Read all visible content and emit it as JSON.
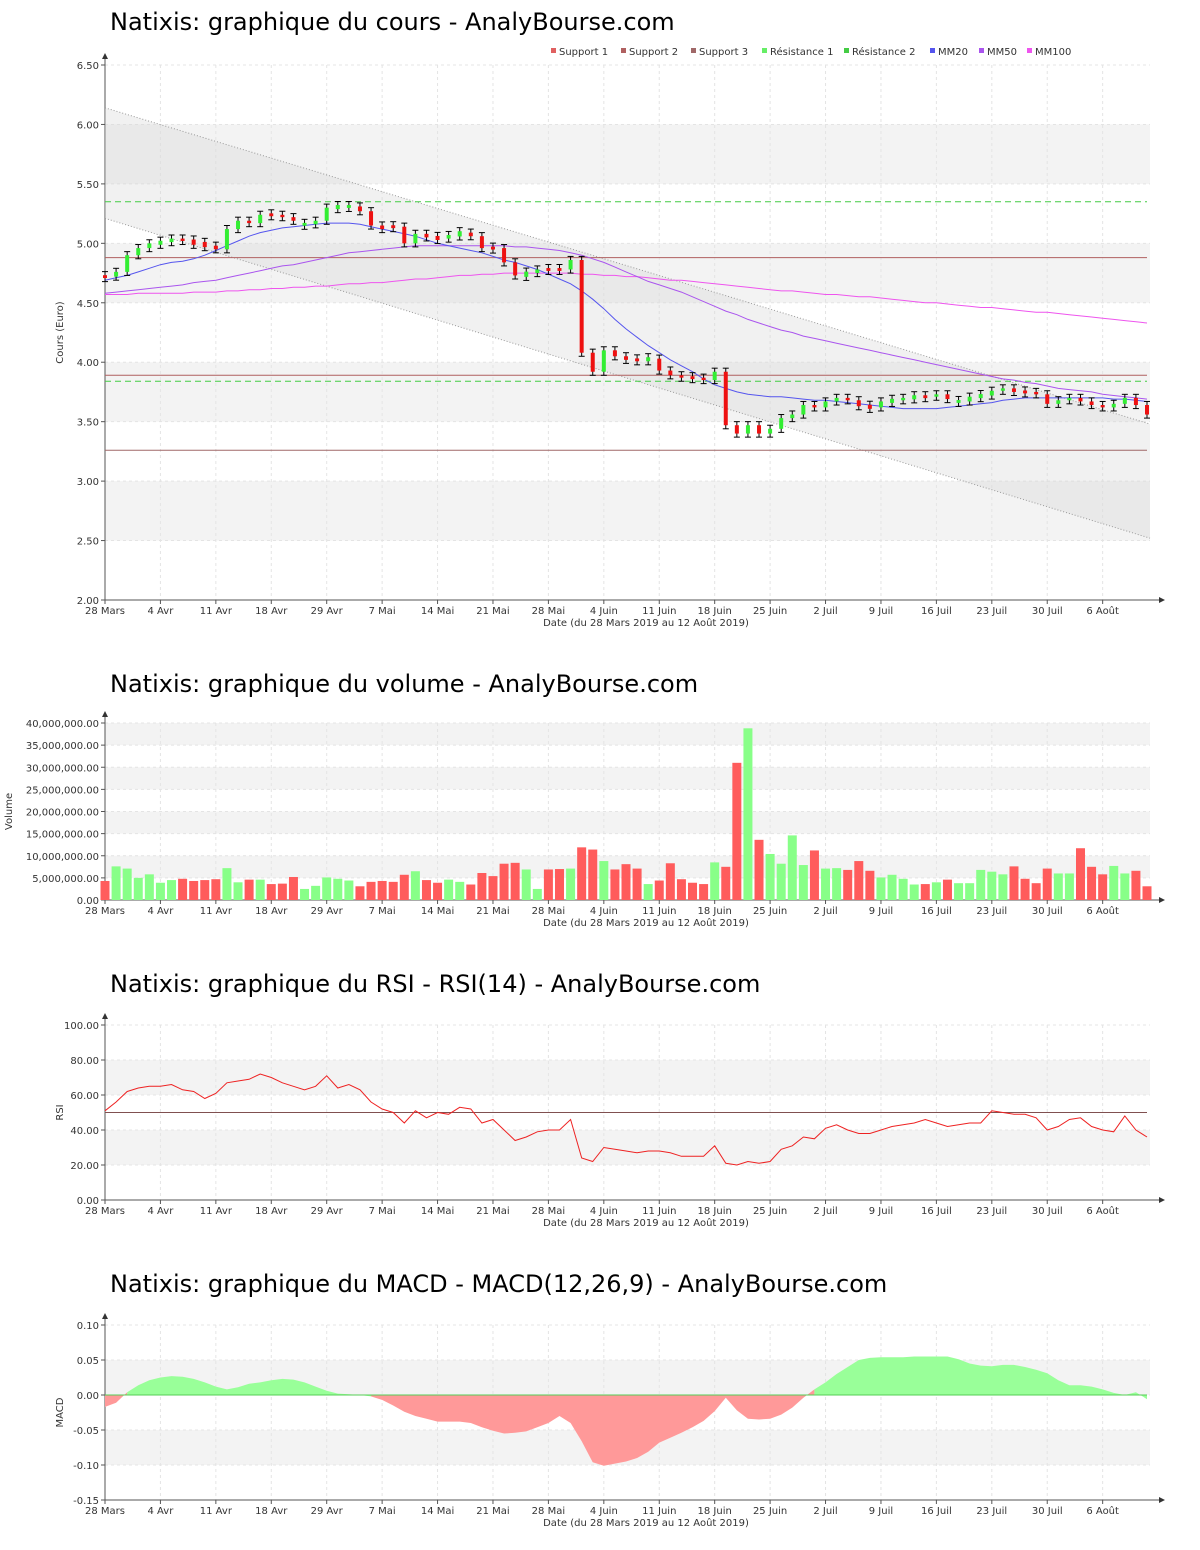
{
  "colors": {
    "support": "#d85c5c",
    "support1_box": "#e06060",
    "support2_box": "#b06060",
    "support3_box": "#a06868",
    "resistance": "#44cc44",
    "resistance_box": "#66ee66",
    "mm20": "#5555ee",
    "mm50": "#aa55ee",
    "mm100": "#ee55ee",
    "candle_up": "#33ee33",
    "candle_down": "#ee1111",
    "vol_up": "#88ff88",
    "vol_down": "#ff5c5c",
    "rsi_line": "#ee2222",
    "macd_pos": "#99ff99",
    "macd_neg": "#ff9999"
  },
  "date_ticks": [
    "28 Mars",
    "4 Avr",
    "11 Avr",
    "18 Avr",
    "29 Avr",
    "7 Mai",
    "14 Mai",
    "21 Mai",
    "28 Mai",
    "4 Juin",
    "11 Juin",
    "18 Juin",
    "25 Juin",
    "2 Juil",
    "9 Juil",
    "16 Juil",
    "23 Juil",
    "30 Juil",
    "6 Août"
  ],
  "date_label": "Date (du 28 Mars 2019 au 12 Août 2019)",
  "panels": {
    "price": {
      "title": "Natixis: graphique du cours - AnalyBourse.com",
      "ylabel": "Cours (Euro)"
    },
    "volume": {
      "title": "Natixis: graphique du volume - AnalyBourse.com",
      "ylabel": "Volume"
    },
    "rsi": {
      "title": "Natixis: graphique du RSI - RSI(14) - AnalyBourse.com",
      "ylabel": "RSI"
    },
    "macd": {
      "title": "Natixis: graphique du MACD - MACD(12,26,9) - AnalyBourse.com",
      "ylabel": "MACD"
    }
  },
  "chart_data": [
    {
      "type": "line",
      "ylabel": "Cours (Euro)",
      "ylim": [
        2.0,
        6.5
      ],
      "yticks": [
        "2.00",
        "2.50",
        "3.00",
        "3.50",
        "4.00",
        "4.50",
        "5.00",
        "5.50",
        "6.00",
        "6.50"
      ],
      "legend": [
        "Support 1",
        "Support 2",
        "Support 3",
        "Résistance 1",
        "Résistance 2",
        "MM20",
        "MM50",
        "MM100"
      ],
      "legend_position": "top-right",
      "levels": {
        "support1": 4.88,
        "support2": 3.89,
        "support3": 3.26,
        "resistance1": 3.84,
        "resistance2": 5.35
      },
      "close": [
        4.72,
        4.76,
        4.9,
        4.96,
        5.0,
        5.01,
        5.04,
        5.02,
        5.0,
        4.98,
        4.95,
        5.12,
        5.19,
        5.17,
        5.24,
        5.24,
        5.22,
        5.19,
        5.16,
        5.19,
        5.3,
        5.31,
        5.31,
        5.27,
        5.15,
        5.12,
        5.14,
        5.0,
        5.08,
        5.05,
        5.04,
        5.07,
        5.09,
        5.06,
        4.96,
        4.96,
        4.84,
        4.73,
        4.75,
        4.78,
        4.78,
        4.78,
        4.86,
        4.08,
        3.92,
        4.1,
        4.05,
        4.02,
        4.02,
        4.03,
        3.93,
        3.89,
        3.87,
        3.87,
        3.85,
        3.92,
        3.47,
        3.4,
        3.47,
        3.4,
        3.44,
        3.53,
        3.56,
        3.64,
        3.62,
        3.67,
        3.7,
        3.68,
        3.63,
        3.62,
        3.67,
        3.68,
        3.7,
        3.71,
        3.71,
        3.73,
        3.69,
        3.67,
        3.71,
        3.72,
        3.76,
        3.78,
        3.75,
        3.75,
        3.73,
        3.65,
        3.68,
        3.7,
        3.67,
        3.64,
        3.62,
        3.65,
        3.7,
        3.64,
        3.56
      ],
      "candle_up": [
        false,
        true,
        true,
        true,
        true,
        true,
        true,
        false,
        false,
        false,
        false,
        true,
        true,
        false,
        true,
        false,
        false,
        false,
        true,
        true,
        true,
        true,
        true,
        false,
        false,
        false,
        false,
        false,
        true,
        false,
        false,
        true,
        true,
        false,
        false,
        false,
        false,
        false,
        true,
        true,
        false,
        false,
        true,
        false,
        false,
        true,
        false,
        false,
        false,
        true,
        false,
        false,
        false,
        false,
        false,
        true,
        false,
        false,
        true,
        false,
        true,
        true,
        true,
        true,
        false,
        true,
        true,
        false,
        false,
        false,
        true,
        true,
        true,
        true,
        false,
        true,
        false,
        true,
        true,
        true,
        true,
        true,
        false,
        false,
        false,
        false,
        true,
        true,
        false,
        false,
        false,
        true,
        true,
        false,
        false
      ],
      "mm20": [
        4.69,
        4.71,
        4.73,
        4.76,
        4.79,
        4.82,
        4.84,
        4.85,
        4.87,
        4.9,
        4.94,
        4.98,
        5.02,
        5.06,
        5.09,
        5.11,
        5.13,
        5.14,
        5.15,
        5.16,
        5.17,
        5.17,
        5.17,
        5.16,
        5.14,
        5.12,
        5.1,
        5.08,
        5.06,
        5.03,
        5.0,
        4.98,
        4.96,
        4.94,
        4.92,
        4.89,
        4.86,
        4.84,
        4.81,
        4.78,
        4.74,
        4.7,
        4.66,
        4.6,
        4.53,
        4.45,
        4.36,
        4.28,
        4.21,
        4.14,
        4.08,
        4.02,
        3.97,
        3.92,
        3.86,
        3.81,
        3.78,
        3.75,
        3.73,
        3.72,
        3.71,
        3.71,
        3.7,
        3.69,
        3.68,
        3.68,
        3.67,
        3.66,
        3.65,
        3.64,
        3.63,
        3.62,
        3.61,
        3.61,
        3.61,
        3.61,
        3.62,
        3.63,
        3.64,
        3.65,
        3.66,
        3.68,
        3.69,
        3.7,
        3.7,
        3.7,
        3.7,
        3.7,
        3.7,
        3.7,
        3.7,
        3.69,
        3.69,
        3.68,
        3.67
      ],
      "mm50": [
        4.58,
        4.59,
        4.6,
        4.61,
        4.62,
        4.63,
        4.64,
        4.65,
        4.67,
        4.68,
        4.69,
        4.71,
        4.73,
        4.75,
        4.77,
        4.79,
        4.81,
        4.82,
        4.84,
        4.86,
        4.88,
        4.9,
        4.92,
        4.93,
        4.94,
        4.95,
        4.96,
        4.97,
        4.98,
        4.98,
        4.98,
        4.98,
        4.98,
        4.98,
        4.98,
        4.98,
        4.98,
        4.97,
        4.97,
        4.96,
        4.95,
        4.94,
        4.92,
        4.9,
        4.87,
        4.84,
        4.8,
        4.76,
        4.72,
        4.68,
        4.65,
        4.62,
        4.59,
        4.55,
        4.51,
        4.47,
        4.43,
        4.4,
        4.36,
        4.33,
        4.3,
        4.27,
        4.25,
        4.22,
        4.2,
        4.18,
        4.16,
        4.14,
        4.12,
        4.1,
        4.08,
        4.06,
        4.04,
        4.02,
        4.0,
        3.98,
        3.96,
        3.94,
        3.92,
        3.9,
        3.88,
        3.86,
        3.85,
        3.83,
        3.82,
        3.8,
        3.78,
        3.77,
        3.76,
        3.75,
        3.73,
        3.72,
        3.71,
        3.7,
        3.69
      ],
      "mm100": [
        4.57,
        4.57,
        4.57,
        4.58,
        4.58,
        4.58,
        4.58,
        4.58,
        4.59,
        4.59,
        4.59,
        4.6,
        4.6,
        4.61,
        4.61,
        4.62,
        4.62,
        4.63,
        4.63,
        4.64,
        4.64,
        4.65,
        4.66,
        4.66,
        4.67,
        4.67,
        4.68,
        4.69,
        4.7,
        4.7,
        4.71,
        4.72,
        4.73,
        4.73,
        4.74,
        4.74,
        4.75,
        4.75,
        4.75,
        4.75,
        4.75,
        4.75,
        4.75,
        4.74,
        4.74,
        4.73,
        4.73,
        4.72,
        4.72,
        4.71,
        4.7,
        4.69,
        4.69,
        4.68,
        4.67,
        4.66,
        4.65,
        4.64,
        4.63,
        4.62,
        4.61,
        4.6,
        4.6,
        4.59,
        4.58,
        4.57,
        4.57,
        4.56,
        4.55,
        4.55,
        4.54,
        4.53,
        4.52,
        4.51,
        4.5,
        4.5,
        4.49,
        4.48,
        4.47,
        4.46,
        4.46,
        4.45,
        4.44,
        4.43,
        4.42,
        4.42,
        4.41,
        4.4,
        4.39,
        4.38,
        4.37,
        4.36,
        4.35,
        4.34,
        4.33
      ]
    },
    {
      "type": "bar",
      "ylabel": "Volume",
      "ylim": [
        0,
        40000000
      ],
      "yticks": [
        "0.00",
        "5,000,000.00",
        "10,000,000.00",
        "15,000,000.00",
        "20,000,000.00",
        "25,000,000.00",
        "30,000,000.00",
        "35,000,000.00",
        "40,000,000.00"
      ],
      "values": [
        4.3,
        7.6,
        7.1,
        5.0,
        5.8,
        3.9,
        4.5,
        4.8,
        4.3,
        4.5,
        4.7,
        7.2,
        4.0,
        4.6,
        4.6,
        3.6,
        3.7,
        5.2,
        2.5,
        3.2,
        5.1,
        4.8,
        4.4,
        3.1,
        4.1,
        4.3,
        4.1,
        5.7,
        6.5,
        4.5,
        3.9,
        4.6,
        4.1,
        3.5,
        6.1,
        5.4,
        8.2,
        8.4,
        6.9,
        2.5,
        6.9,
        7.0,
        7.1,
        11.9,
        11.4,
        8.8,
        6.9,
        8.1,
        7.1,
        3.6,
        4.4,
        8.3,
        4.7,
        3.9,
        3.6,
        8.5,
        7.5,
        31.0,
        38.8,
        13.6,
        10.4,
        8.2,
        14.6,
        7.9,
        11.2,
        7.1,
        7.2,
        6.8,
        8.8,
        6.6,
        5.1,
        5.7,
        4.8,
        3.5,
        3.6,
        4.0,
        4.6,
        3.8,
        3.8,
        6.8,
        6.4,
        5.8,
        7.6,
        4.8,
        3.8,
        7.1,
        6.0,
        6.0,
        11.7,
        7.5,
        5.8,
        7.7,
        6.0,
        6.6,
        3.1
      ]
    },
    {
      "type": "line",
      "ylabel": "RSI",
      "ylim": [
        0,
        100
      ],
      "yticks": [
        "0.00",
        "20.00",
        "40.00",
        "60.00",
        "80.00",
        "100.00"
      ],
      "reference": 50,
      "values": [
        51,
        56,
        62,
        64,
        65,
        65,
        66,
        63,
        62,
        58,
        61,
        67,
        68,
        69,
        72,
        70,
        67,
        65,
        63,
        65,
        71,
        64,
        66,
        63,
        56,
        52,
        50,
        44,
        51,
        47,
        50,
        49,
        53,
        52,
        44,
        46,
        40,
        34,
        36,
        39,
        40,
        40,
        46,
        24,
        22,
        30,
        29,
        28,
        27,
        28,
        28,
        27,
        25,
        25,
        25,
        31,
        21,
        20,
        22,
        21,
        22,
        29,
        31,
        36,
        35,
        41,
        43,
        40,
        38,
        38,
        40,
        42,
        43,
        44,
        46,
        44,
        42,
        43,
        44,
        44,
        51,
        50,
        49,
        49,
        47,
        40,
        42,
        46,
        47,
        42,
        40,
        39,
        48,
        40,
        36
      ]
    },
    {
      "type": "area",
      "ylabel": "MACD",
      "ylim": [
        -0.15,
        0.1
      ],
      "yticks": [
        "-0.15",
        "-0.10",
        "-0.05",
        "0.00",
        "0.05",
        "0.10"
      ],
      "values": [
        -0.017,
        -0.011,
        0.004,
        0.014,
        0.021,
        0.025,
        0.027,
        0.026,
        0.023,
        0.018,
        0.012,
        0.008,
        0.011,
        0.016,
        0.018,
        0.021,
        0.023,
        0.022,
        0.018,
        0.012,
        0.006,
        0.002,
        0.001,
        0.0,
        -0.002,
        -0.007,
        -0.015,
        -0.024,
        -0.03,
        -0.034,
        -0.038,
        -0.038,
        -0.038,
        -0.04,
        -0.046,
        -0.051,
        -0.055,
        -0.054,
        -0.052,
        -0.046,
        -0.04,
        -0.03,
        -0.04,
        -0.066,
        -0.096,
        -0.101,
        -0.098,
        -0.095,
        -0.09,
        -0.081,
        -0.068,
        -0.061,
        -0.054,
        -0.046,
        -0.037,
        -0.023,
        -0.004,
        -0.022,
        -0.034,
        -0.035,
        -0.034,
        -0.028,
        -0.018,
        -0.004,
        0.008,
        0.018,
        0.03,
        0.04,
        0.05,
        0.053,
        0.054,
        0.054,
        0.054,
        0.055,
        0.055,
        0.055,
        0.055,
        0.051,
        0.045,
        0.042,
        0.041,
        0.043,
        0.043,
        0.04,
        0.036,
        0.031,
        0.021,
        0.014,
        0.014,
        0.012,
        0.008,
        0.003,
        0.0,
        0.004,
        -0.006
      ]
    }
  ]
}
